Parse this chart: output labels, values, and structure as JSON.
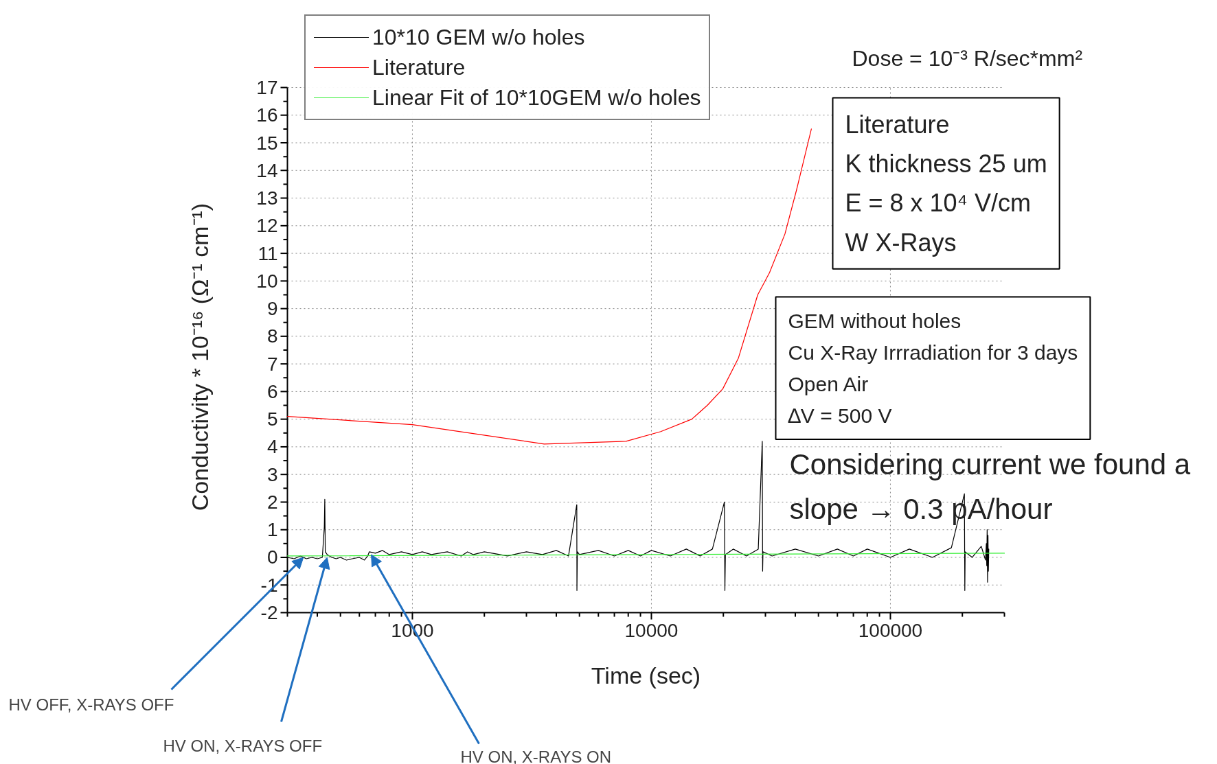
{
  "chart_data": {
    "type": "line",
    "xlabel": "Time (sec)",
    "ylabel": "Conductivity * 10⁻¹⁶ (Ω⁻¹ cm⁻¹)",
    "log": "x",
    "xlim": [
      300,
      300000
    ],
    "xticks": [
      1000,
      10000,
      100000
    ],
    "ylim": [
      -2,
      17
    ],
    "yticks": [
      -2,
      -1,
      0,
      1,
      2,
      3,
      4,
      5,
      6,
      7,
      8,
      9,
      10,
      11,
      12,
      13,
      14,
      15,
      16,
      17
    ],
    "grid": true,
    "legend": "top left",
    "series": [
      {
        "name": "10*10 GEM w/o holes",
        "color": "#000000",
        "x": [
          300,
          320,
          340,
          360,
          380,
          400,
          420,
          428,
          430,
          432,
          440,
          460,
          480,
          500,
          530,
          560,
          600,
          630,
          650,
          660,
          700,
          750,
          800,
          900,
          1000,
          1100,
          1200,
          1400,
          1600,
          1700,
          1800,
          2000,
          2500,
          3000,
          3500,
          4000,
          4500,
          4870,
          4874,
          4880,
          4900,
          5000,
          6000,
          7000,
          8000,
          9000,
          10000,
          12000,
          14000,
          16000,
          18000,
          20200,
          20300,
          20400,
          22000,
          25000,
          28000,
          29100,
          29200,
          29300,
          32000,
          40000,
          50000,
          60000,
          70000,
          80000,
          100000,
          120000,
          150000,
          180000,
          204000,
          204800,
          205500,
          220000,
          240000,
          250000,
          252000,
          253000,
          254000,
          255000,
          256000,
          257000,
          258000
        ],
        "values": [
          0.0,
          -0.05,
          0.05,
          -0.05,
          0.0,
          -0.05,
          0.0,
          1.1,
          2.1,
          0.2,
          0.1,
          0.0,
          -0.05,
          0.0,
          -0.1,
          -0.05,
          0.0,
          -0.1,
          0.05,
          0.2,
          0.15,
          0.25,
          0.1,
          0.2,
          0.1,
          0.2,
          0.1,
          0.2,
          0.05,
          0.2,
          0.1,
          0.2,
          0.05,
          0.2,
          0.1,
          0.25,
          0.05,
          1.9,
          1.9,
          -1.2,
          0.2,
          0.1,
          0.25,
          0.05,
          0.25,
          0.05,
          0.25,
          0.05,
          0.3,
          0.05,
          0.3,
          2.0,
          -1.2,
          0.1,
          0.3,
          0.05,
          0.3,
          4.2,
          -0.5,
          0.2,
          0.05,
          0.3,
          0.05,
          0.3,
          0.05,
          0.3,
          0.0,
          0.3,
          0.0,
          0.35,
          2.3,
          -1.2,
          0.2,
          0.0,
          0.4,
          -0.1,
          0.5,
          -0.3,
          1.0,
          -0.9,
          0.8,
          -0.5,
          0.3
        ]
      },
      {
        "name": "Literature",
        "color": "#ff0000",
        "x": [
          300,
          1000,
          3560,
          7830,
          10940,
          14760,
          17140,
          19900,
          23100,
          27850,
          31200,
          36200,
          40500,
          46700
        ],
        "values": [
          5.1,
          4.8,
          4.1,
          4.2,
          4.55,
          5.0,
          5.5,
          6.1,
          7.2,
          9.5,
          10.3,
          11.7,
          13.3,
          15.5
        ]
      },
      {
        "name": "Linear Fit of 10*10GEM w/o holes",
        "color": "#33ee33",
        "x": [
          300,
          300000
        ],
        "values": [
          0.05,
          0.15
        ]
      }
    ],
    "annotations": [
      "Dose = 10⁻³ R/sec*mm²",
      "Literature\nK thickness 25 um\nE = 8 x 10⁴ V/cm\nW X-Rays",
      "GEM without holes\nCu X-Ray Irrradiation for 3 days\nOpen Air\n∆V = 500 V",
      "Considering current we found a\nslope → 0.3 pA/hour",
      {
        "text": "HV OFF, X-RAYS OFF",
        "x": 350,
        "y": 0
      },
      {
        "text": "HV ON, X-RAYS OFF",
        "x": 440,
        "y": 0
      },
      {
        "text": "HV ON, X-RAYS ON",
        "x": 673,
        "y": 0.1
      }
    ]
  }
}
